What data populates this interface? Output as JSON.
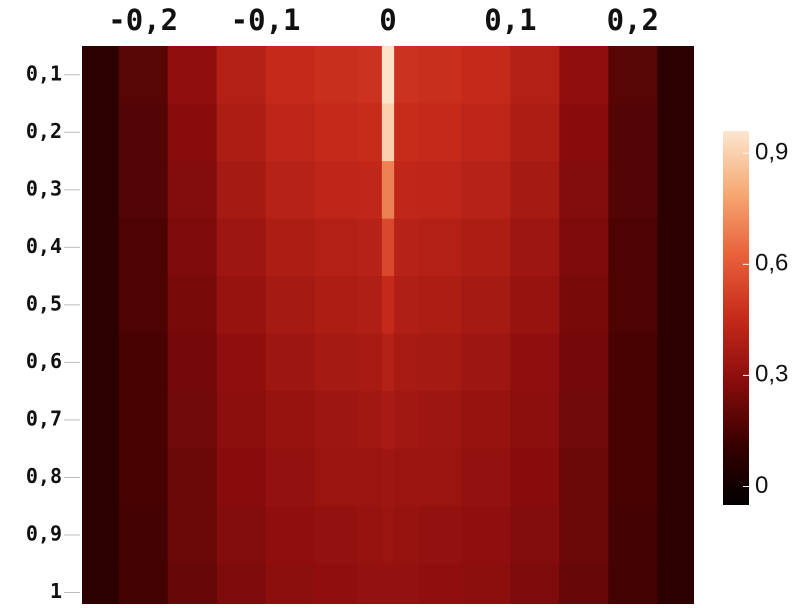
{
  "chart_data": {
    "type": "heatmap",
    "x": [
      -0.24,
      -0.2,
      -0.16,
      -0.12,
      -0.08,
      -0.04,
      -0.01,
      0,
      0.01,
      0.04,
      0.08,
      0.12,
      0.16,
      0.2,
      0.24
    ],
    "y": [
      0.1,
      0.2,
      0.3,
      0.4,
      0.5,
      0.6,
      0.7,
      0.8,
      0.9,
      1
    ],
    "z": [
      [
        0.08,
        0.18,
        0.3,
        0.4,
        0.45,
        0.47,
        0.48,
        0.95,
        0.48,
        0.47,
        0.45,
        0.4,
        0.3,
        0.18,
        0.08
      ],
      [
        0.08,
        0.17,
        0.28,
        0.38,
        0.43,
        0.45,
        0.46,
        0.9,
        0.46,
        0.45,
        0.43,
        0.38,
        0.28,
        0.17,
        0.08
      ],
      [
        0.08,
        0.17,
        0.27,
        0.36,
        0.41,
        0.43,
        0.44,
        0.7,
        0.44,
        0.43,
        0.41,
        0.36,
        0.27,
        0.17,
        0.08
      ],
      [
        0.08,
        0.16,
        0.26,
        0.34,
        0.38,
        0.4,
        0.41,
        0.55,
        0.41,
        0.4,
        0.38,
        0.34,
        0.26,
        0.16,
        0.08
      ],
      [
        0.08,
        0.16,
        0.25,
        0.32,
        0.36,
        0.38,
        0.39,
        0.45,
        0.39,
        0.38,
        0.36,
        0.32,
        0.25,
        0.16,
        0.08
      ],
      [
        0.08,
        0.15,
        0.24,
        0.3,
        0.34,
        0.36,
        0.37,
        0.4,
        0.37,
        0.36,
        0.34,
        0.3,
        0.24,
        0.15,
        0.08
      ],
      [
        0.08,
        0.15,
        0.23,
        0.29,
        0.32,
        0.34,
        0.35,
        0.37,
        0.35,
        0.34,
        0.32,
        0.29,
        0.23,
        0.15,
        0.08
      ],
      [
        0.08,
        0.15,
        0.22,
        0.28,
        0.31,
        0.33,
        0.33,
        0.34,
        0.33,
        0.33,
        0.31,
        0.28,
        0.22,
        0.15,
        0.08
      ],
      [
        0.08,
        0.14,
        0.22,
        0.27,
        0.3,
        0.31,
        0.32,
        0.33,
        0.32,
        0.31,
        0.3,
        0.27,
        0.22,
        0.14,
        0.08
      ],
      [
        0.08,
        0.14,
        0.21,
        0.26,
        0.29,
        0.3,
        0.31,
        0.31,
        0.31,
        0.3,
        0.29,
        0.26,
        0.21,
        0.14,
        0.08
      ]
    ],
    "xlim": [
      -0.25,
      0.25
    ],
    "ylim": [
      0.05,
      1.02
    ],
    "xticks": [
      {
        "value": -0.2,
        "label": "-0,2"
      },
      {
        "value": -0.1,
        "label": "-0,1"
      },
      0,
      {
        "value": 0.1,
        "label": "0,1"
      },
      {
        "value": 0.2,
        "label": "0,2"
      }
    ],
    "yticks": [
      {
        "value": 0.1,
        "label": "0,1"
      },
      {
        "value": 0.2,
        "label": "0,2"
      },
      {
        "value": 0.3,
        "label": "0,3"
      },
      {
        "value": 0.4,
        "label": "0,4"
      },
      {
        "value": 0.5,
        "label": "0,5"
      },
      {
        "value": 0.6,
        "label": "0,6"
      },
      {
        "value": 0.7,
        "label": "0,7"
      },
      {
        "value": 0.8,
        "label": "0,8"
      },
      {
        "value": 0.9,
        "label": "0,9"
      },
      1
    ],
    "zlim": [
      -0.05,
      0.96
    ],
    "zticks": [
      0,
      {
        "value": 0.3,
        "label": "0,3"
      },
      {
        "value": 0.6,
        "label": "0,6"
      },
      {
        "value": 0.9,
        "label": "0,9"
      }
    ],
    "colorscale": [
      "#000000",
      "#3a0000",
      "#8b0d0d",
      "#c62a1a",
      "#e8603a",
      "#f6a873",
      "#fde6cf"
    ]
  }
}
